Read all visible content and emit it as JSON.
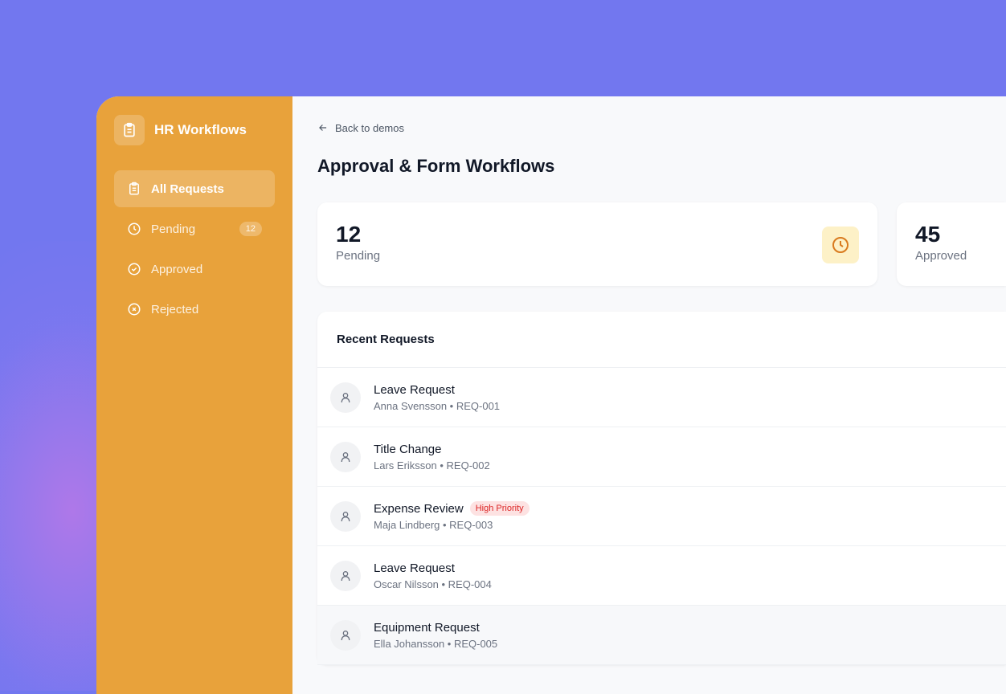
{
  "sidebar": {
    "brand": "HR Workflows",
    "items": [
      {
        "label": "All Requests",
        "icon": "clipboard-icon",
        "active": true
      },
      {
        "label": "Pending",
        "icon": "clock-icon",
        "badge": "12"
      },
      {
        "label": "Approved",
        "icon": "check-circle-icon"
      },
      {
        "label": "Rejected",
        "icon": "x-circle-icon"
      }
    ]
  },
  "header": {
    "back": "Back to demos",
    "title": "Approval & Form Workflows"
  },
  "stats": [
    {
      "value": "12",
      "label": "Pending"
    },
    {
      "value": "45",
      "label": "Approved"
    }
  ],
  "recent": {
    "title": "Recent Requests",
    "rows": [
      {
        "title": "Leave Request",
        "sub": "Anna Svensson • REQ-001"
      },
      {
        "title": "Title Change",
        "sub": "Lars Eriksson • REQ-002"
      },
      {
        "title": "Expense Review",
        "sub": "Maja Lindberg • REQ-003",
        "tag": "High Priority"
      },
      {
        "title": "Leave Request",
        "sub": "Oscar Nilsson • REQ-004"
      },
      {
        "title": "Equipment Request",
        "sub": "Ella Johansson • REQ-005"
      }
    ]
  },
  "colors": {
    "background": "#7277ef",
    "sidebar": "#e8a23b",
    "priority": "#dc2626"
  }
}
